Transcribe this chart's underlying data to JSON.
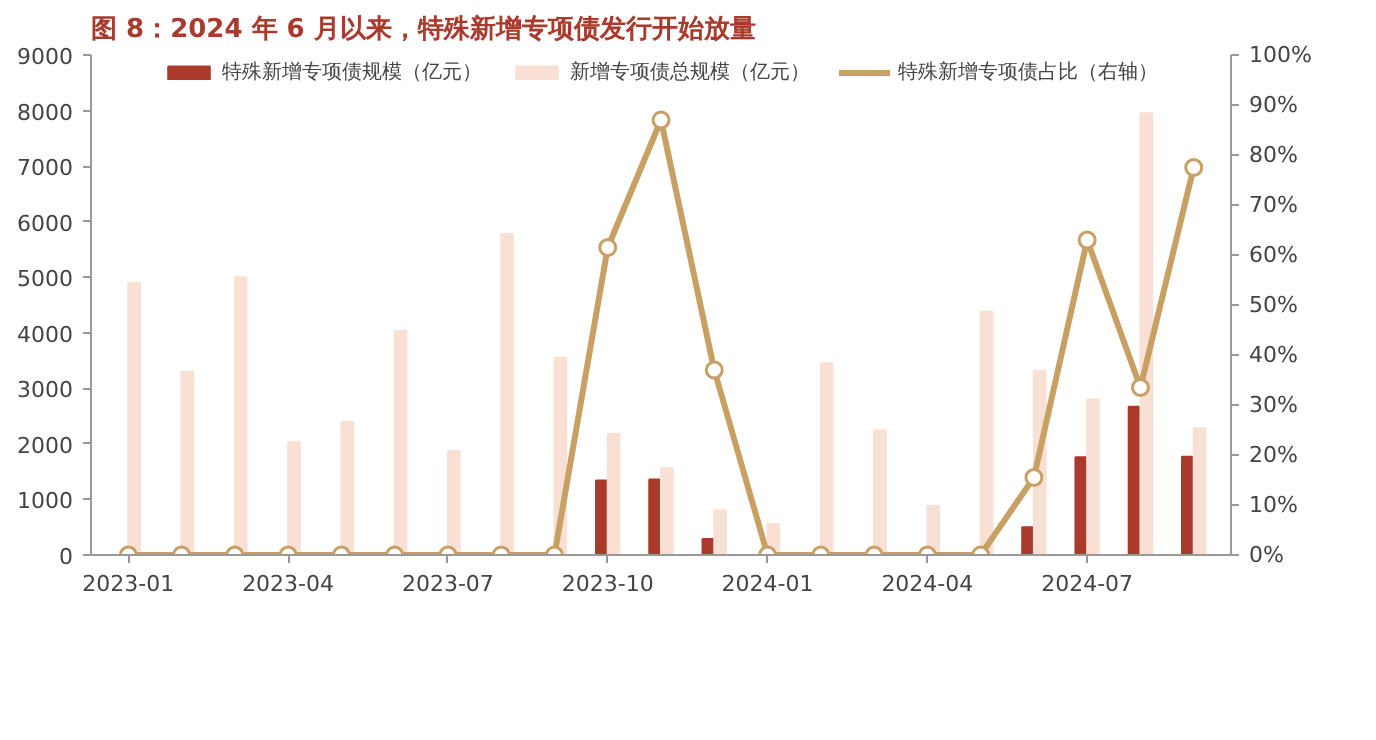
{
  "chart_data": {
    "type": "bar",
    "title": "图 8：2024 年 6 月以来，特殊新增专项债发行开始放量",
    "categories": [
      "2023-01",
      null,
      null,
      "2023-04",
      null,
      null,
      "2023-07",
      null,
      null,
      "2023-10",
      null,
      null,
      "2024-01",
      null,
      null,
      "2024-04",
      null,
      null,
      "2024-07",
      null,
      null
    ],
    "series": [
      {
        "name": "特殊新增专项债规模（亿元）",
        "color": "#a93a2c",
        "values": [
          0,
          0,
          0,
          0,
          0,
          0,
          0,
          0,
          0,
          1340,
          1360,
          290,
          0,
          0,
          0,
          0,
          0,
          500,
          1760,
          2670,
          1770
        ]
      },
      {
        "name": "新增专项债总规模（亿元）",
        "color": "#f9e0d5",
        "values": [
          4900,
          3300,
          5000,
          2030,
          2400,
          4030,
          1870,
          5780,
          3550,
          2180,
          1560,
          800,
          560,
          3450,
          2240,
          880,
          4380,
          3310,
          2800,
          7950,
          2280
        ]
      },
      {
        "name": "特殊新增专项债占比（右轴）",
        "color": "#c9a063",
        "type": "line",
        "axis": "y2",
        "marker": "circle",
        "values": [
          0,
          0,
          0,
          0,
          0,
          0,
          0,
          0,
          0,
          61.5,
          87,
          37,
          0,
          0,
          0,
          0,
          0,
          15.5,
          63,
          33.5,
          77.5
        ]
      }
    ],
    "ylim": [
      0,
      9000
    ],
    "yticks": [
      0,
      1000,
      2000,
      3000,
      4000,
      5000,
      6000,
      7000,
      8000,
      9000
    ],
    "y2lim": [
      0,
      100
    ],
    "y2ticks": [
      {
        "value": 0,
        "label": "0%"
      },
      {
        "value": 10,
        "label": "10%"
      },
      {
        "value": 20,
        "label": "20%"
      },
      {
        "value": 30,
        "label": "30%"
      },
      {
        "value": 40,
        "label": "40%"
      },
      {
        "value": 50,
        "label": "50%"
      },
      {
        "value": 60,
        "label": "60%"
      },
      {
        "value": 70,
        "label": "70%"
      },
      {
        "value": 80,
        "label": "80%"
      },
      {
        "value": 90,
        "label": "90%"
      },
      {
        "value": 100,
        "label": "100%"
      }
    ],
    "grid": false,
    "legend": "top"
  }
}
